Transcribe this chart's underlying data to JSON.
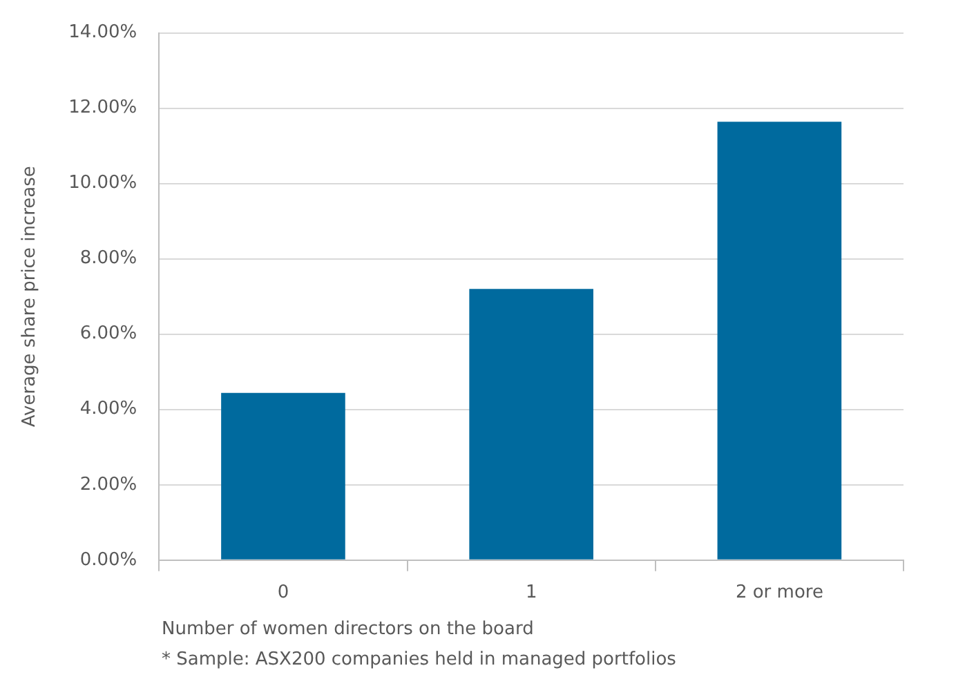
{
  "chart_data": {
    "type": "bar",
    "ylabel": "Average share price increase",
    "xlabel": "Number of women directors on the board",
    "annotations": [
      "* Sample: ASX200 companies held in managed portfolios"
    ],
    "categories": [
      "0",
      "1",
      "2 or more"
    ],
    "values": [
      4.44,
      7.2,
      11.64
    ],
    "color": "#006a9e",
    "ylim": [
      0,
      14
    ],
    "yticks": [
      {
        "value": 0,
        "label": "0.00%"
      },
      {
        "value": 2,
        "label": "2.00%"
      },
      {
        "value": 4,
        "label": "4.00%"
      },
      {
        "value": 6,
        "label": "6.00%"
      },
      {
        "value": 8,
        "label": "8.00%"
      },
      {
        "value": 10,
        "label": "10.00%"
      },
      {
        "value": 12,
        "label": "12.00%"
      },
      {
        "value": 14,
        "label": "14.00%"
      }
    ],
    "grid": "y",
    "legend": false
  }
}
